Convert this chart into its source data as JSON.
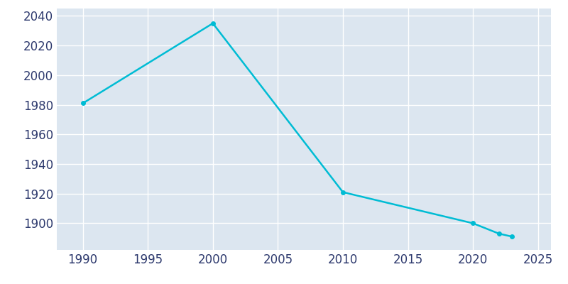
{
  "years": [
    1990,
    2000,
    2010,
    2020,
    2022,
    2023
  ],
  "population": [
    1981,
    2035,
    1921,
    1900,
    1893,
    1891
  ],
  "line_color": "#00bcd4",
  "background_color": "#dce6f0",
  "fig_background_color": "#ffffff",
  "grid_color": "#ffffff",
  "tick_color": "#2e3a6e",
  "xlim": [
    1988,
    2026
  ],
  "ylim": [
    1882,
    2045
  ],
  "xticks": [
    1990,
    1995,
    2000,
    2005,
    2010,
    2015,
    2020,
    2025
  ],
  "yticks": [
    1900,
    1920,
    1940,
    1960,
    1980,
    2000,
    2020,
    2040
  ],
  "line_width": 1.8,
  "marker": "o",
  "marker_size": 4,
  "tick_fontsize": 12
}
